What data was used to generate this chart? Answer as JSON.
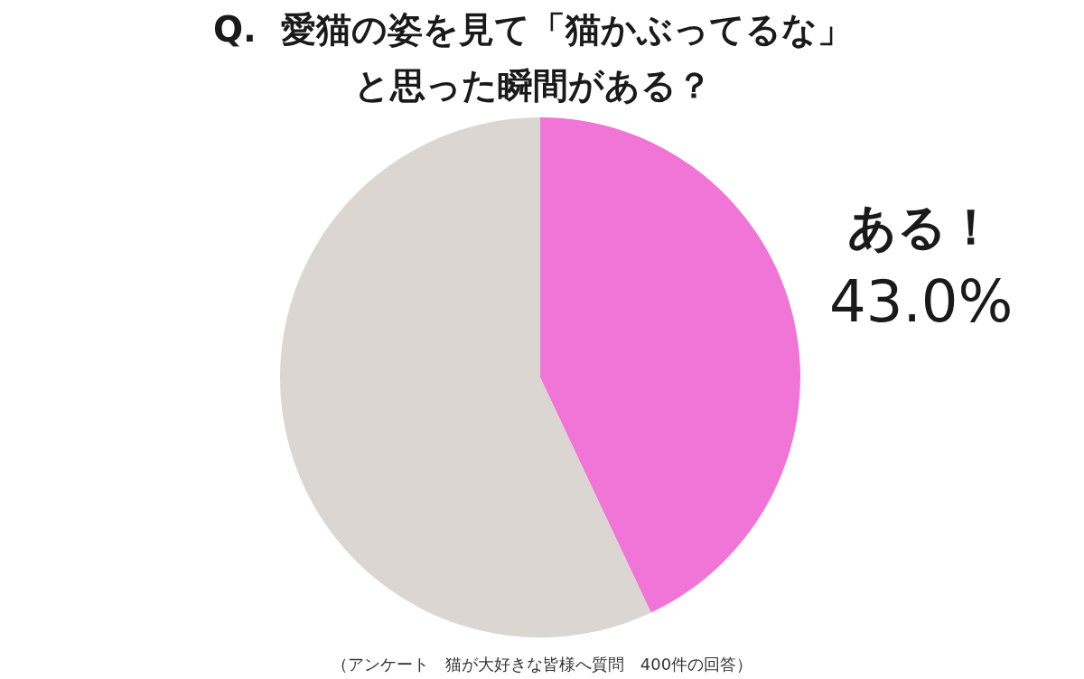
{
  "chart_data": {
    "type": "pie",
    "title": "Q.  愛猫の姿を見て「猫かぶってるな」と思った瞬間がある？",
    "categories": [
      "ある！",
      null
    ],
    "values": [
      43.0,
      57.0
    ],
    "colors": [
      "#f075d6",
      "#dbd6d1"
    ],
    "value_labels": [
      "43.0%",
      null
    ],
    "annotations": [
      "（アンケート　猫が大好きな皆様へ質問　400件の回答）"
    ]
  }
}
